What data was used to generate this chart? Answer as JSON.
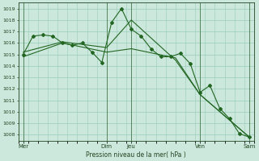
{
  "bg_color": "#cce8dc",
  "grid_color": "#99ccbb",
  "line_color": "#226622",
  "marker_color": "#226622",
  "xlabel_text": "Pression niveau de la mer( hPa )",
  "ylim": [
    1007.5,
    1019.5
  ],
  "yticks": [
    1008,
    1009,
    1010,
    1011,
    1012,
    1013,
    1014,
    1015,
    1016,
    1017,
    1018,
    1019
  ],
  "xlim": [
    0,
    24
  ],
  "xtick_positions": [
    0.5,
    9.0,
    11.5,
    18.5,
    23.5
  ],
  "xtick_labels": [
    "Mer",
    "Dim",
    "Jeu",
    "Ven",
    "Sam"
  ],
  "vline_positions": [
    0.5,
    9.0,
    11.5,
    18.5,
    23.5
  ],
  "series": [
    {
      "x": [
        0.5,
        1.5,
        2.5,
        3.5,
        4.5,
        5.5,
        6.5,
        7.5,
        8.5,
        9.5,
        10.5,
        11.5,
        12.5,
        13.5,
        14.5,
        15.5,
        16.5,
        17.5,
        18.5,
        19.5,
        20.5,
        21.5,
        22.5,
        23.5
      ],
      "y": [
        1015.0,
        1016.6,
        1016.7,
        1016.6,
        1016.0,
        1015.8,
        1016.0,
        1015.2,
        1014.3,
        1017.8,
        1019.0,
        1017.2,
        1016.6,
        1015.5,
        1014.8,
        1014.8,
        1015.1,
        1014.2,
        1011.7,
        1012.3,
        1010.3,
        1009.4,
        1008.1,
        1007.8
      ],
      "has_markers": true
    },
    {
      "x": [
        0.5,
        4.5,
        9.0,
        11.5,
        16.0,
        18.5,
        23.5
      ],
      "y": [
        1014.8,
        1016.0,
        1015.2,
        1015.5,
        1014.7,
        1011.5,
        1007.8
      ],
      "has_markers": false
    },
    {
      "x": [
        0.5,
        4.5,
        9.0,
        11.5,
        16.0,
        18.5,
        23.5
      ],
      "y": [
        1015.2,
        1016.1,
        1015.6,
        1018.0,
        1014.5,
        1011.5,
        1007.8
      ],
      "has_markers": false
    }
  ]
}
